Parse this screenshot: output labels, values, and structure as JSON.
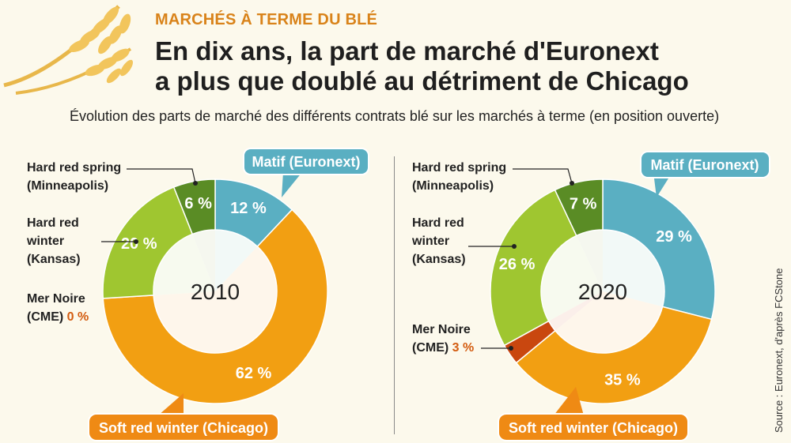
{
  "header": {
    "kicker": "MARCHÉS À TERME DU BLÉ",
    "title_line1": "En dix ans, la part de marché d'Euronext",
    "title_line2": "a plus que doublé au détriment de Chicago",
    "subtitle": "Évolution des parts de marché des différents contrats blé sur les marchés à terme (en position ouverte)"
  },
  "source": "Source : Euronext, d'après FCStone",
  "colors": {
    "matif": "#5aafc2",
    "soft_red_winter": "#f29f12",
    "mer_noire": "#c9470f",
    "hard_red_winter": "#9fc630",
    "hard_red_spring": "#5a8c25",
    "orange_callout": "#ef8a14"
  },
  "labels": {
    "hard_red_spring": [
      "Hard red spring",
      "(Minneapolis)"
    ],
    "hard_red_winter": [
      "Hard red",
      "winter",
      "(Kansas)"
    ],
    "mer_noire": [
      "Mer Noire",
      "(CME)"
    ],
    "matif": "Matif (Euronext)",
    "soft_red_winter": "Soft red winter (Chicago)"
  },
  "chart_data": [
    {
      "type": "pie",
      "title": "2010",
      "slices": [
        {
          "name": "Matif (Euronext)",
          "value": 12,
          "label": "12 %"
        },
        {
          "name": "Soft red winter (Chicago)",
          "value": 62,
          "label": "62 %"
        },
        {
          "name": "Mer Noire (CME)",
          "value": 0,
          "label": "0 %"
        },
        {
          "name": "Hard red winter (Kansas)",
          "value": 20,
          "label": "20 %"
        },
        {
          "name": "Hard red spring (Minneapolis)",
          "value": 6,
          "label": "6 %"
        }
      ]
    },
    {
      "type": "pie",
      "title": "2020",
      "slices": [
        {
          "name": "Matif (Euronext)",
          "value": 29,
          "label": "29 %"
        },
        {
          "name": "Soft red winter (Chicago)",
          "value": 35,
          "label": "35 %"
        },
        {
          "name": "Mer Noire (CME)",
          "value": 3,
          "label": "3 %"
        },
        {
          "name": "Hard red winter (Kansas)",
          "value": 26,
          "label": "26 %"
        },
        {
          "name": "Hard red spring (Minneapolis)",
          "value": 7,
          "label": "7 %"
        }
      ]
    }
  ]
}
